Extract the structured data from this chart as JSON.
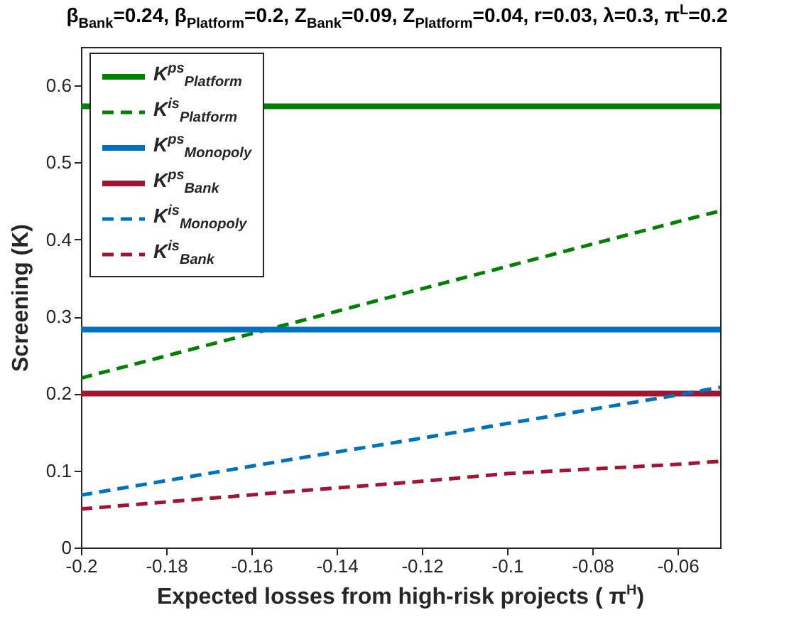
{
  "chart_data": {
    "type": "line",
    "title": "β$_{Bank}$=0.24, β$_{Platform}$=0.2, Z$_{Bank}$=0.09, Z$_{Platform}$=0.04, r=0.03,  λ=0.3, π$^{L}$=0.2",
    "xlabel": "Expected losses from high-risk projects ( π$^{H}$)",
    "ylabel": "Screening (K)",
    "x": [
      -0.2,
      -0.15,
      -0.12,
      -0.1,
      -0.06,
      -0.05
    ],
    "series": [
      {
        "name": "K$^{ps}$$_{Platform}$",
        "color": "#008000",
        "line_style": "solid",
        "values": [
          0.573,
          0.573,
          0.573,
          0.573,
          0.573,
          0.573
        ]
      },
      {
        "name": "K$^{is}$$_{Platform}$",
        "color": "#008000",
        "line_style": "dashed",
        "values": [
          0.22,
          0.292,
          0.336,
          0.365,
          0.423,
          0.437
        ]
      },
      {
        "name": "K$^{ps}$$_{Monopoly}$",
        "color": "#0072bd",
        "line_style": "solid",
        "values": [
          0.283,
          0.283,
          0.283,
          0.283,
          0.283,
          0.283
        ]
      },
      {
        "name": "K$^{ps}$$_{Bank}$",
        "color": "#a2142f",
        "line_style": "solid",
        "values": [
          0.2,
          0.2,
          0.2,
          0.2,
          0.2,
          0.2
        ]
      },
      {
        "name": "K$^{is}$$_{Monopoly}$",
        "color": "#0072bd",
        "line_style": "dashed",
        "values": [
          0.068,
          0.115,
          0.142,
          0.161,
          0.198,
          0.208
        ]
      },
      {
        "name": "K$^{is}$$_{Bank}$",
        "color": "#a2142f",
        "line_style": "dashed",
        "values": [
          0.05,
          0.073,
          0.086,
          0.096,
          0.108,
          0.112
        ]
      }
    ],
    "xlim": [
      -0.2,
      -0.05
    ],
    "xticks": [
      -0.2,
      -0.18,
      -0.16,
      -0.14,
      -0.12,
      -0.1,
      -0.08,
      -0.06
    ],
    "ylim": [
      0,
      0.65
    ],
    "yticks": [
      0,
      0.1,
      0.2,
      0.3,
      0.4,
      0.5,
      0.6
    ],
    "grid": false,
    "legend": "top left"
  }
}
